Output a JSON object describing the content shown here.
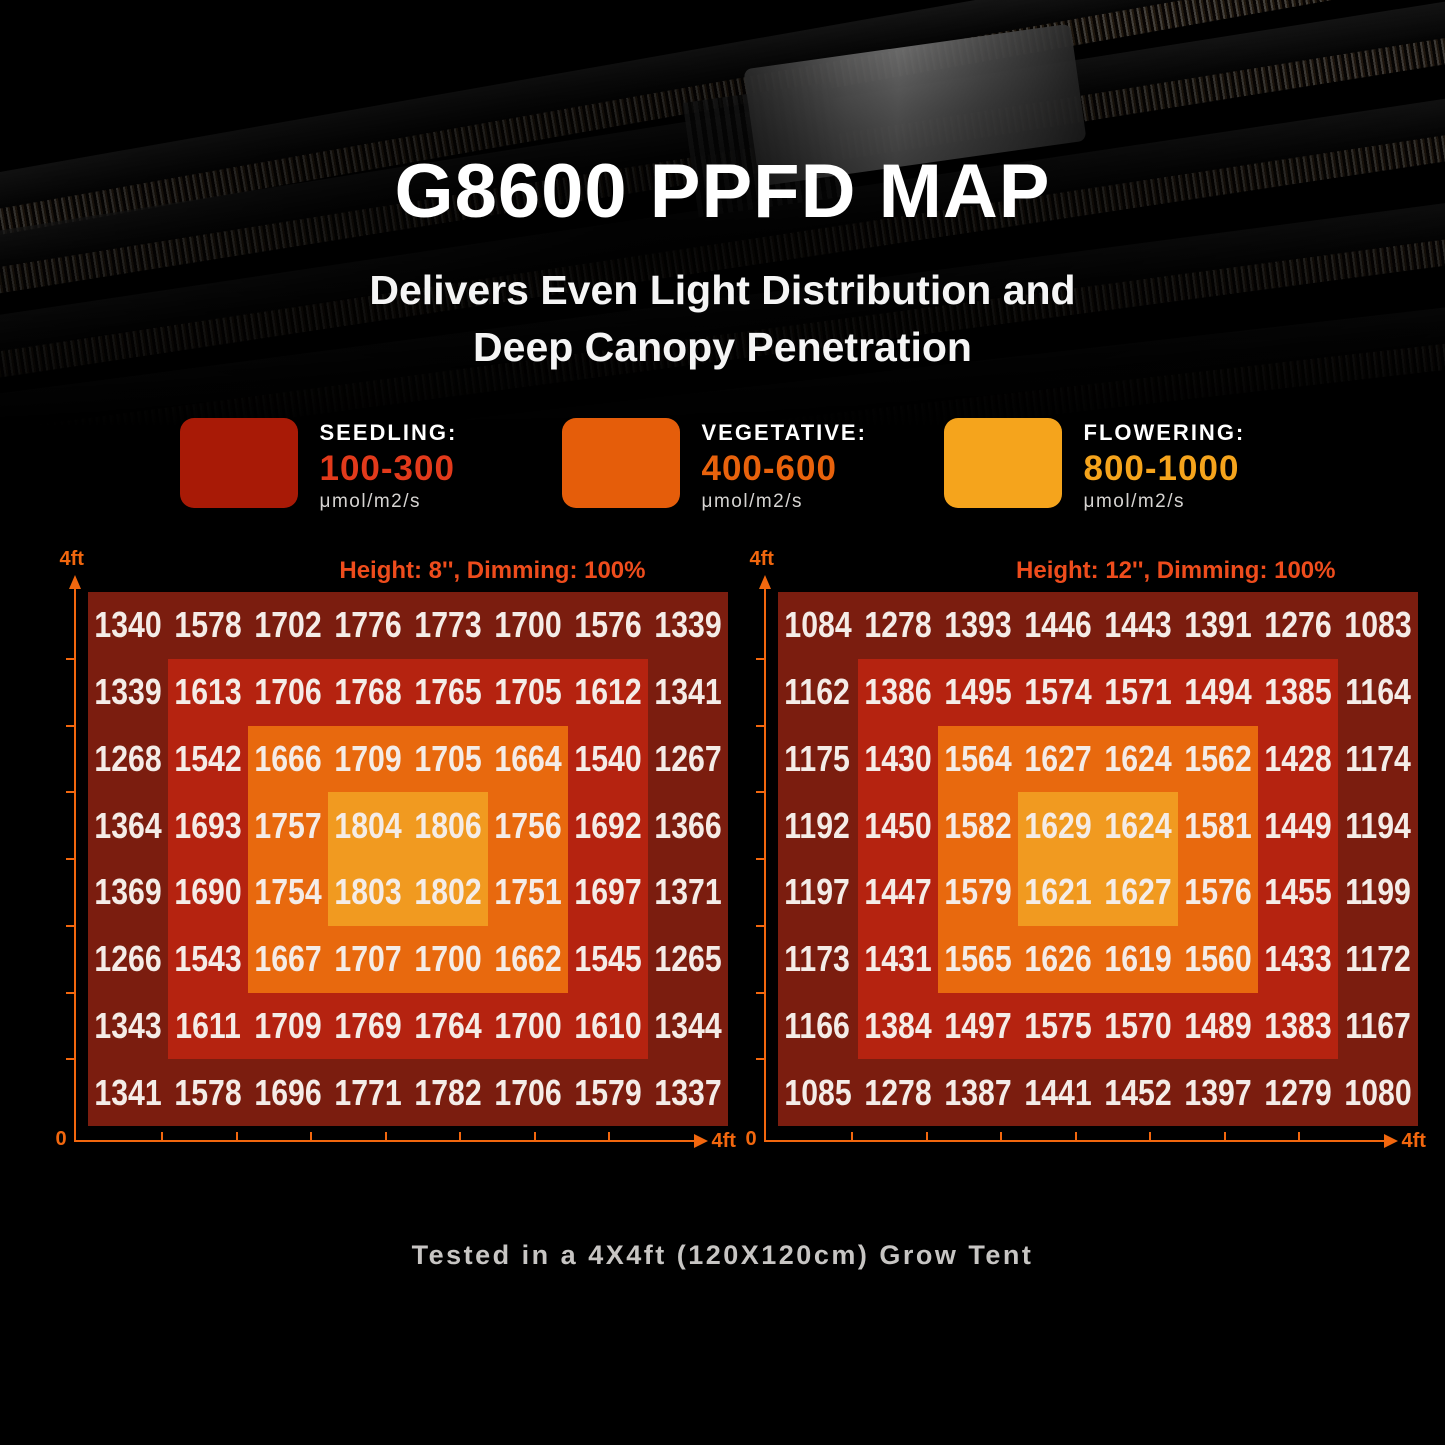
{
  "header": {
    "title": "G8600 PPFD MAP",
    "subtitle_line1": "Delivers Even Light Distribution and",
    "subtitle_line2": "Deep Canopy Penetration"
  },
  "legend": {
    "items": [
      {
        "label": "SEEDLING:",
        "range": "100-300",
        "unit": "μmol/m2/s",
        "swatch_color": "#a81a06",
        "range_color": "#e23a1b"
      },
      {
        "label": "VEGETATIVE:",
        "range": "400-600",
        "unit": "μmol/m2/s",
        "swatch_color": "#e55d0a",
        "range_color": "#e8620c"
      },
      {
        "label": "FLOWERING:",
        "range": "800-1000",
        "unit": "μmol/m2/s",
        "swatch_color": "#f5a41c",
        "range_color": "#f5a41c"
      }
    ]
  },
  "chart_data": [
    {
      "type": "heatmap",
      "title": "Height: 8'', Dimming: 100%",
      "axis": {
        "y_top": "4ft",
        "origin": "0",
        "x_right": "4ft"
      },
      "grid": {
        "rows": 8,
        "cols": 8
      },
      "ring_colors": [
        "#7b1d0f",
        "#b52310",
        "#e8690e",
        "#f19a20"
      ],
      "values": [
        [
          1340,
          1578,
          1702,
          1776,
          1773,
          1700,
          1576,
          1339
        ],
        [
          1339,
          1613,
          1706,
          1768,
          1765,
          1705,
          1612,
          1341
        ],
        [
          1268,
          1542,
          1666,
          1709,
          1705,
          1664,
          1540,
          1267
        ],
        [
          1364,
          1693,
          1757,
          1804,
          1806,
          1756,
          1692,
          1366
        ],
        [
          1369,
          1690,
          1754,
          1803,
          1802,
          1751,
          1697,
          1371
        ],
        [
          1266,
          1543,
          1667,
          1707,
          1700,
          1662,
          1545,
          1265
        ],
        [
          1343,
          1611,
          1709,
          1769,
          1764,
          1700,
          1610,
          1344
        ],
        [
          1341,
          1578,
          1696,
          1771,
          1782,
          1706,
          1579,
          1337
        ]
      ]
    },
    {
      "type": "heatmap",
      "title": "Height: 12'', Dimming: 100%",
      "axis": {
        "y_top": "4ft",
        "origin": "0",
        "x_right": "4ft"
      },
      "grid": {
        "rows": 8,
        "cols": 8
      },
      "ring_colors": [
        "#7b1d0f",
        "#b52310",
        "#e8690e",
        "#f19a20"
      ],
      "values": [
        [
          1084,
          1278,
          1393,
          1446,
          1443,
          1391,
          1276,
          1083
        ],
        [
          1162,
          1386,
          1495,
          1574,
          1571,
          1494,
          1385,
          1164
        ],
        [
          1175,
          1430,
          1564,
          1627,
          1624,
          1562,
          1428,
          1174
        ],
        [
          1192,
          1450,
          1582,
          1629,
          1624,
          1581,
          1449,
          1194
        ],
        [
          1197,
          1447,
          1579,
          1621,
          1627,
          1576,
          1455,
          1199
        ],
        [
          1173,
          1431,
          1565,
          1626,
          1619,
          1560,
          1433,
          1172
        ],
        [
          1166,
          1384,
          1497,
          1575,
          1570,
          1489,
          1383,
          1167
        ],
        [
          1085,
          1278,
          1387,
          1441,
          1452,
          1397,
          1279,
          1080
        ]
      ]
    }
  ],
  "footer": {
    "note": "Tested in a 4X4ft (120X120cm) Grow Tent"
  },
  "colors": {
    "background": "#000000",
    "title_text": "#ffffff",
    "axis_accent": "#f2670e",
    "chart_title_accent": "#ee4c1c",
    "cell_text": "#f4ece7",
    "unit_text": "#d6d4d2",
    "footer_text": "#c7c5c3"
  }
}
